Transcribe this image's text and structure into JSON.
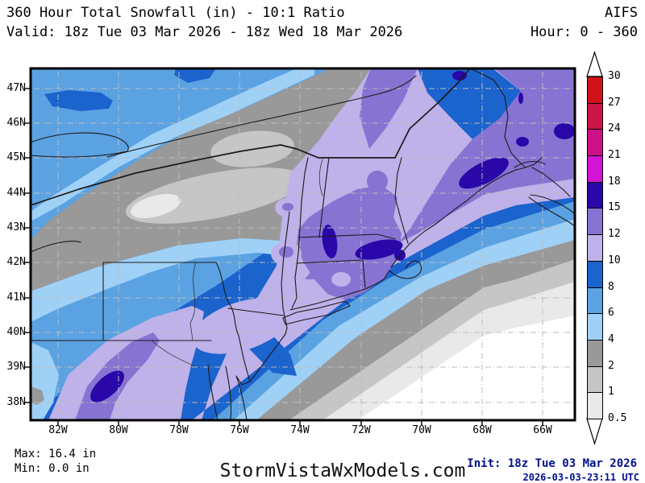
{
  "header": {
    "title": "360 Hour Total Snowfall (in) - 10:1 Ratio",
    "model": "AIFS",
    "valid": "Valid: 18z Tue 03 Mar 2026 - 18z Wed 18 Mar 2026",
    "hour": "Hour: 0 - 360"
  },
  "footer": {
    "max": "Max: 16.4 in",
    "min": "Min: 0.0 in",
    "watermark": "StormVistaWxModels.com",
    "init": "Init: 18z Tue 03 Mar 2026",
    "generated": "2026-03-03-23:11 UTC"
  },
  "axes": {
    "lat_labels": [
      "47N",
      "46N",
      "45N",
      "44N",
      "43N",
      "42N",
      "41N",
      "40N",
      "39N",
      "38N"
    ],
    "lon_labels": [
      "82W",
      "80W",
      "78W",
      "76W",
      "74W",
      "72W",
      "70W",
      "68W",
      "66W"
    ]
  },
  "colorbar": {
    "boundary_labels": [
      "30",
      "27",
      "24",
      "21",
      "18",
      "15",
      "12",
      "10",
      "8",
      "6",
      "4",
      "2",
      "1",
      "0.5"
    ],
    "segment_colors_top_to_bottom": [
      "#d01218",
      "#cc1448",
      "#cc1088",
      "#d414d4",
      "#2a07a8",
      "#8673d2",
      "#bfb1e9",
      "#1b63cd",
      "#5ba2e2",
      "#9fd1f7",
      "#999999",
      "#c6c6c6",
      "#e9e9e9"
    ],
    "overflow_arrow_color": "#ffffff"
  },
  "chart_data": {
    "type": "filled_contour_map",
    "title": "360 Hour Total Snowfall (in) - 10:1 Ratio",
    "model": "AIFS",
    "valid_start": "18z Tue 03 Mar 2026",
    "valid_end": "18z Wed 18 Mar 2026",
    "forecast_hour_range": [
      0,
      360
    ],
    "units": "in",
    "levels": [
      0.5,
      1,
      2,
      4,
      6,
      8,
      10,
      12,
      15,
      18,
      21,
      24,
      27,
      30
    ],
    "palette": [
      "#e9e9e9",
      "#c6c6c6",
      "#999999",
      "#9fd1f7",
      "#5ba2e2",
      "#1b63cd",
      "#bfb1e9",
      "#8673d2",
      "#2a07a8",
      "#d414d4",
      "#cc1088",
      "#cc1448",
      "#d01218"
    ],
    "max_value_in": 16.4,
    "min_value_in": 0.0,
    "lat_tick_range": [
      "38N",
      "47N"
    ],
    "lon_tick_range": [
      "82W",
      "66W"
    ],
    "init_time": "18z Tue 03 Mar 2026",
    "issued": "2026-03-03-23:11 UTC"
  }
}
